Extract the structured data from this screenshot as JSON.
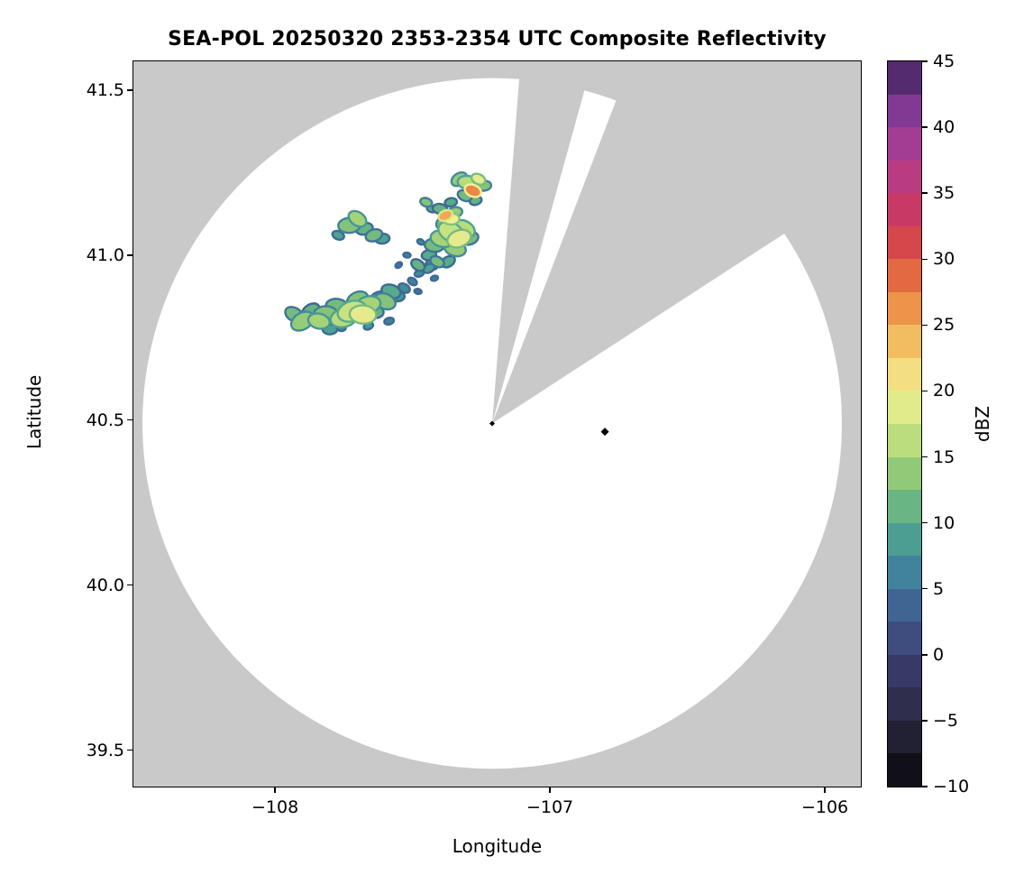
{
  "chart_data": {
    "type": "radar-ppi-map",
    "title": "SEA-POL 20250320 2353-2354 UTC Composite Reflectivity",
    "xlabel": "Longitude",
    "ylabel": "Latitude",
    "xlim": [
      -108.515,
      -105.869
    ],
    "ylim": [
      39.39,
      41.587
    ],
    "xticks": [
      {
        "v": -108,
        "label": "−108"
      },
      {
        "v": -107,
        "label": "−107"
      },
      {
        "v": -106,
        "label": "−106"
      }
    ],
    "yticks": [
      {
        "v": 39.5,
        "label": "39.5"
      },
      {
        "v": 40.0,
        "label": "40.0"
      },
      {
        "v": 40.5,
        "label": "40.5"
      },
      {
        "v": 41.0,
        "label": "41.0"
      },
      {
        "v": 41.5,
        "label": "41.5"
      }
    ],
    "background_outside_scan": "#c9c9c9",
    "scan_area_color": "#ffffff",
    "radar": {
      "site_lon": -107.21,
      "site_lat": 40.49,
      "coverage_rx_deg": 1.272,
      "coverage_ry_deg": 1.046,
      "blocked_sectors_az_deg": [
        [
          4.5,
          15.5
        ],
        [
          21,
          57
        ]
      ]
    },
    "site_markers": [
      {
        "lon": -107.21,
        "lat": 40.49,
        "size": 3
      },
      {
        "lon": -106.8,
        "lat": 40.465,
        "size": 4.5
      }
    ],
    "colorbar": {
      "label": "dBZ",
      "min": -10,
      "max": 45,
      "n_blocks": 22,
      "ticks": [
        {
          "v": 45,
          "label": "45"
        },
        {
          "v": 40,
          "label": "40"
        },
        {
          "v": 35,
          "label": "35"
        },
        {
          "v": 30,
          "label": "30"
        },
        {
          "v": 25,
          "label": "25"
        },
        {
          "v": 20,
          "label": "20"
        },
        {
          "v": 15,
          "label": "15"
        },
        {
          "v": 10,
          "label": "10"
        },
        {
          "v": 5,
          "label": "5"
        },
        {
          "v": 0,
          "label": "0"
        },
        {
          "v": -5,
          "label": "−5"
        },
        {
          "v": -10,
          "label": "−10"
        }
      ]
    },
    "colormap_stops": [
      [
        -10,
        "#08080a"
      ],
      [
        -5,
        "#2a2840"
      ],
      [
        0,
        "#3d3f74"
      ],
      [
        5,
        "#3f739c"
      ],
      [
        7.5,
        "#43919b"
      ],
      [
        10,
        "#55ab8b"
      ],
      [
        12.5,
        "#7dbf7b"
      ],
      [
        15,
        "#a6d377"
      ],
      [
        17.5,
        "#d2e683"
      ],
      [
        20,
        "#f2ef94"
      ],
      [
        22.5,
        "#f3cf6e"
      ],
      [
        25,
        "#f0a852"
      ],
      [
        27.5,
        "#e97f41"
      ],
      [
        30,
        "#dd5340"
      ],
      [
        32.5,
        "#cd3a55"
      ],
      [
        35,
        "#c23a74"
      ],
      [
        37.5,
        "#b03d92"
      ],
      [
        40,
        "#953c95"
      ],
      [
        42.5,
        "#6e3590"
      ],
      [
        45,
        "#3b2150"
      ]
    ],
    "echo_cells_lon_lat_dbz_r": [
      [
        -107.93,
        40.82,
        12,
        8
      ],
      [
        -107.9,
        40.8,
        14,
        10
      ],
      [
        -107.87,
        40.83,
        11,
        8
      ],
      [
        -107.84,
        40.8,
        15,
        9
      ],
      [
        -107.815,
        40.82,
        13,
        10
      ],
      [
        -107.8,
        40.775,
        9,
        6
      ],
      [
        -107.775,
        40.845,
        12,
        9
      ],
      [
        -107.75,
        40.81,
        16,
        11
      ],
      [
        -107.72,
        40.83,
        17,
        12
      ],
      [
        -107.7,
        40.865,
        13,
        9
      ],
      [
        -107.68,
        40.82,
        19,
        11
      ],
      [
        -107.66,
        40.85,
        15,
        10
      ],
      [
        -107.64,
        40.83,
        11,
        8
      ],
      [
        -107.625,
        40.87,
        9,
        7
      ],
      [
        -107.6,
        40.86,
        13,
        9
      ],
      [
        -107.578,
        40.89,
        10,
        8
      ],
      [
        -107.555,
        40.875,
        8,
        6
      ],
      [
        -107.53,
        40.9,
        7,
        5
      ],
      [
        -107.76,
        40.78,
        7,
        4
      ],
      [
        -107.66,
        40.785,
        8,
        4
      ],
      [
        -107.585,
        40.8,
        6,
        4
      ],
      [
        -107.5,
        40.92,
        6,
        4
      ],
      [
        -107.475,
        40.945,
        7,
        4
      ],
      [
        -107.77,
        41.06,
        9,
        5
      ],
      [
        -107.73,
        41.09,
        13,
        9
      ],
      [
        -107.7,
        41.11,
        15,
        8
      ],
      [
        -107.675,
        41.08,
        11,
        7
      ],
      [
        -107.64,
        41.06,
        12,
        7
      ],
      [
        -107.61,
        41.05,
        9,
        6
      ],
      [
        -107.55,
        40.97,
        5,
        3
      ],
      [
        -107.52,
        41.0,
        6,
        3
      ],
      [
        -107.48,
        40.97,
        11,
        6
      ],
      [
        -107.44,
        40.96,
        9,
        5
      ],
      [
        -107.41,
        40.98,
        12,
        6
      ],
      [
        -107.47,
        41.04,
        7,
        3
      ],
      [
        -107.42,
        40.93,
        6,
        3
      ],
      [
        -107.48,
        40.89,
        5,
        3
      ],
      [
        -107.44,
        41.0,
        10,
        6
      ],
      [
        -107.42,
        41.03,
        12,
        8
      ],
      [
        -107.39,
        41.05,
        15,
        10
      ],
      [
        -107.36,
        41.07,
        17,
        11
      ],
      [
        -107.345,
        41.02,
        14,
        9
      ],
      [
        -107.33,
        41.05,
        19,
        10
      ],
      [
        -107.31,
        41.08,
        16,
        9
      ],
      [
        -107.29,
        41.05,
        12,
        7
      ],
      [
        -107.38,
        41.1,
        13,
        8
      ],
      [
        -107.43,
        40.97,
        8,
        5
      ],
      [
        -107.37,
        40.98,
        10,
        6
      ],
      [
        -107.45,
        41.16,
        13,
        5
      ],
      [
        -107.43,
        41.14,
        10,
        4
      ],
      [
        -107.4,
        41.14,
        11,
        6
      ],
      [
        -107.38,
        41.12,
        25,
        6
      ],
      [
        -107.36,
        41.11,
        20,
        7
      ],
      [
        -107.36,
        41.16,
        10,
        5
      ],
      [
        -107.345,
        41.13,
        14,
        6
      ],
      [
        -107.33,
        41.23,
        14,
        7
      ],
      [
        -107.3,
        41.22,
        16,
        8
      ],
      [
        -107.28,
        41.195,
        27,
        7
      ],
      [
        -107.26,
        41.23,
        19,
        6
      ],
      [
        -107.24,
        41.21,
        13,
        6
      ],
      [
        -107.31,
        41.18,
        12,
        6
      ],
      [
        -107.27,
        41.165,
        11,
        5
      ]
    ]
  }
}
